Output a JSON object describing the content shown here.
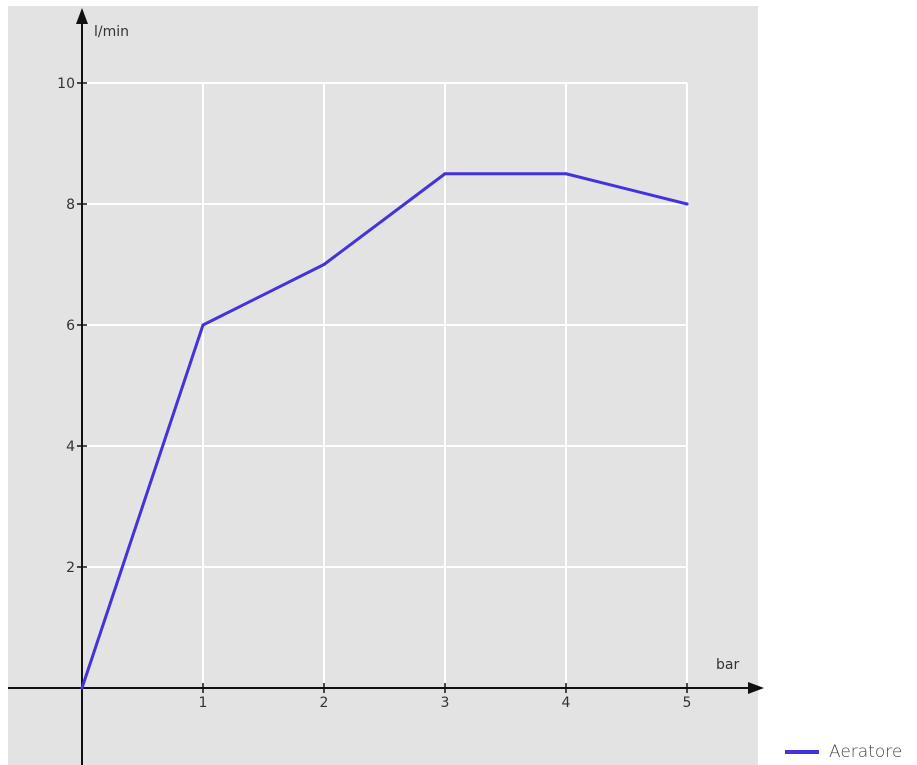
{
  "chart_data": {
    "type": "line",
    "xlabel": "bar",
    "ylabel": "l/min",
    "x_ticks": [
      1,
      2,
      3,
      4,
      5
    ],
    "y_ticks": [
      2,
      4,
      6,
      8,
      10
    ],
    "xlim": [
      0,
      5
    ],
    "ylim": [
      0,
      10
    ],
    "grid": true,
    "legend_position": "bottom-right",
    "series": [
      {
        "name": "Aeratore",
        "color": "#4433dd",
        "x": [
          0,
          1,
          2,
          3,
          4,
          5
        ],
        "y": [
          0,
          6,
          7,
          8.5,
          8.5,
          8
        ]
      }
    ]
  }
}
